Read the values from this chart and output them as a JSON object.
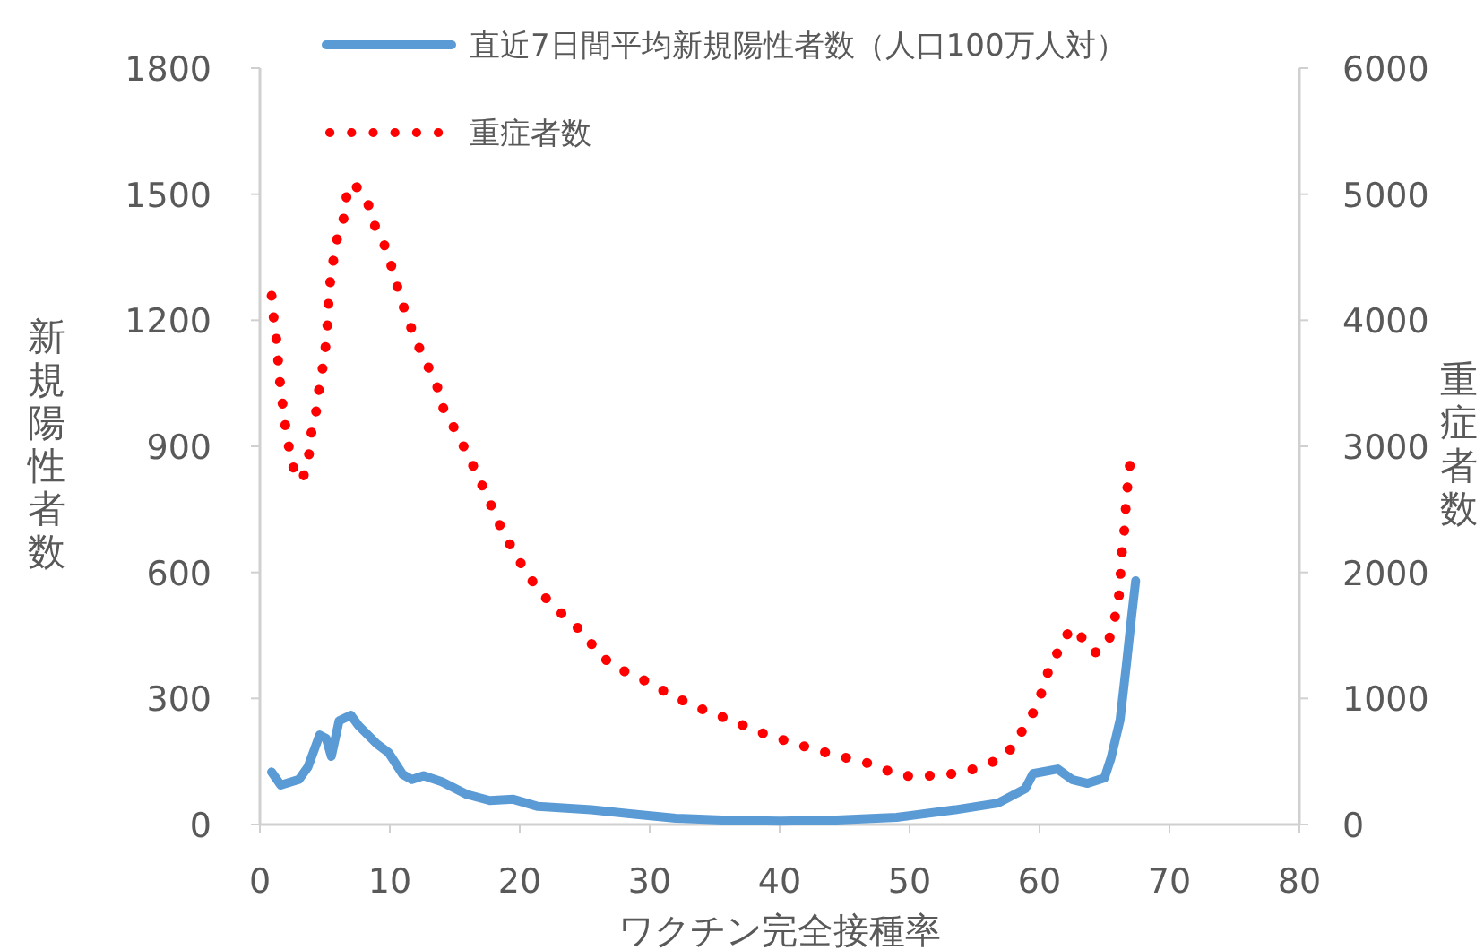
{
  "chart_data": {
    "type": "line",
    "xlabel": "ワクチン完全接種率",
    "ylabel": "新規陽性者数",
    "y2label": "重症者数",
    "xlim": [
      0,
      80
    ],
    "xticks": [
      0,
      10,
      20,
      30,
      40,
      50,
      60,
      70,
      80
    ],
    "ylim": [
      0,
      1800
    ],
    "yticks": [
      0,
      300,
      600,
      900,
      1200,
      1500,
      1800
    ],
    "y2lim": [
      0,
      6000
    ],
    "y2ticks": [
      0,
      1000,
      2000,
      3000,
      4000,
      5000,
      6000
    ],
    "legend": "top",
    "series": [
      {
        "name": "直近7日間平均新規陽性者数（人口100万人対）",
        "color": "#5b9bd5",
        "line_style": "solid",
        "x": [
          0.9,
          1.6,
          3,
          3.7,
          4.6,
          5.1,
          5.5,
          6.1,
          7,
          7.6,
          9,
          9.9,
          11,
          11.7,
          12.6,
          14,
          15.9,
          17.7,
          19.5,
          21.4,
          25.5,
          28.3,
          32,
          36,
          40,
          44,
          49,
          53.5,
          56.8,
          58.9,
          59.5,
          61.4,
          62.5,
          63.7,
          65,
          65.5,
          66.2,
          66.7,
          67.1,
          67.4
        ],
        "values": [
          125,
          94,
          107,
          137,
          213,
          205,
          162,
          247,
          260,
          235,
          192,
          171,
          119,
          107,
          116,
          102,
          72,
          57,
          60,
          43,
          35,
          26,
          15,
          10,
          8,
          10,
          17,
          35,
          51,
          85,
          121,
          132,
          107,
          98,
          111,
          158,
          249,
          384,
          499,
          580
        ]
      },
      {
        "name": "重症者数",
        "color": "#ff0000",
        "line_style": "dotted",
        "axis": "y2",
        "x": [
          0.9,
          1.06,
          1.24,
          1.38,
          1.52,
          1.7,
          1.89,
          2.16,
          2.4,
          2.76,
          2.99,
          3.36,
          3.77,
          3.95,
          4.32,
          4.55,
          4.83,
          5.06,
          5.2,
          5.29,
          5.43,
          5.7,
          5.98,
          6.44,
          6.67,
          7.03,
          7.68,
          8.37,
          8.87,
          9.56,
          10.1,
          10.58,
          11.08,
          11.68,
          12.32,
          13.06,
          13.75,
          14.2,
          15.08,
          15.86,
          16.6,
          17.3,
          18,
          18.7,
          19.54,
          20.4,
          21.4,
          22.5,
          23.8,
          25.06,
          26,
          27.3,
          29.7,
          31.7,
          33.8,
          36.3,
          39,
          41.7,
          44.1,
          46.9,
          49.2,
          50.7,
          52.3,
          54,
          55.5,
          57,
          58.2,
          58.9,
          59.9,
          60.3,
          60.9,
          61.7,
          62.4,
          63.3,
          64.2,
          64.97,
          65.6,
          65.9,
          66.2,
          66.25,
          66.4,
          66.6,
          66.65,
          66.85,
          67.03
        ],
        "values": [
          4195,
          4020,
          3886,
          3711,
          3531,
          3380,
          3209,
          3048,
          2868,
          2797,
          2834,
          2763,
          2929,
          3100,
          3271,
          3451,
          3622,
          3797,
          3972,
          4148,
          4328,
          4503,
          4669,
          4806,
          4982,
          5087,
          5039,
          4911,
          4745,
          4603,
          4437,
          4266,
          4100,
          3929,
          3768,
          3608,
          3446,
          3271,
          3124,
          2962,
          2806,
          2645,
          2484,
          2318,
          2171,
          2015,
          1867,
          1739,
          1621,
          1503,
          1361,
          1251,
          1138,
          1024,
          924,
          825,
          711,
          626,
          555,
          484,
          390,
          380,
          394,
          408,
          460,
          522,
          640,
          796,
          943,
          1109,
          1275,
          1422,
          1560,
          1479,
          1361,
          1394,
          1526,
          1697,
          1867,
          2048,
          2223,
          2399,
          2574,
          2754,
          2929
        ]
      }
    ]
  }
}
